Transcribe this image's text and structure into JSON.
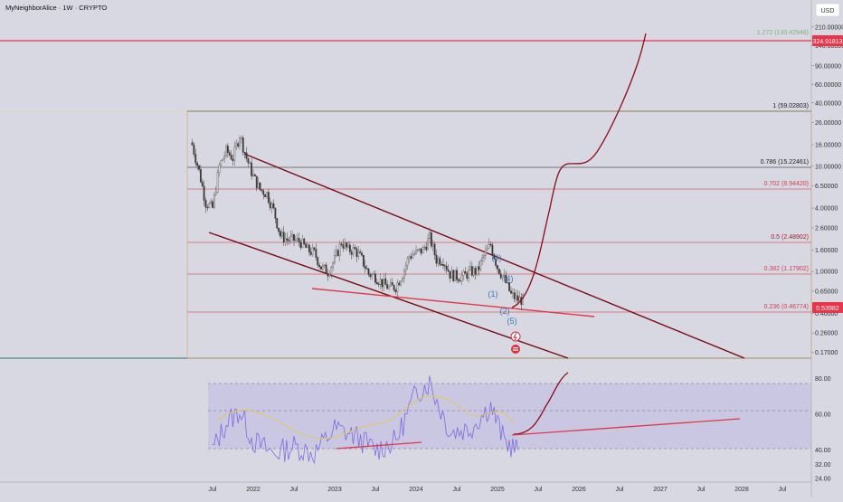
{
  "header": {
    "title": "MyNeighborAlice · 1W · CRYPTO",
    "currency": "USD"
  },
  "colors": {
    "background": "#d8d8e2",
    "rsi_band": "#c9c7e2",
    "channel": "#7a0a14",
    "support": "#e0384a",
    "projection": "#8b0d17",
    "candle_up": "#5f5a55",
    "candle_down": "#3d3733",
    "rsi_line": "#7b6be0",
    "rsi_ma": "#e6c84c",
    "fib_green": "#8fbf8f",
    "fib_red": "#e05060",
    "fib_gray": "#6a6a6a",
    "price_badge": "#e8354a",
    "elliott": "#3c78b4"
  },
  "price_axis": {
    "ticks": [
      "210.00000",
      "140.00000",
      "90.00000",
      "60.00000",
      "40.00000",
      "26.00000",
      "16.00000",
      "10.00000",
      "6.50000",
      "4.00000",
      "2.60000",
      "1.60000",
      "1.00000",
      "0.65000",
      "0.40000",
      "0.26000",
      "0.17000"
    ],
    "badge_top": "324.91813",
    "badge_current": "0.53982"
  },
  "rsi_axis": {
    "ticks": [
      "80.00",
      "60.00",
      "40.00",
      "32.00",
      "24.00"
    ]
  },
  "time_axis": {
    "labels": [
      "Jul",
      "2022",
      "Jul",
      "2023",
      "Jul",
      "2024",
      "Jul",
      "2025",
      "Jul",
      "2026",
      "Jul",
      "2027",
      "Jul",
      "2028",
      "Jul"
    ]
  },
  "fib_levels": [
    {
      "label": "1.272 (130.42948)",
      "color": "green"
    },
    {
      "label": "1 (59.02803)",
      "color": "gray"
    },
    {
      "label": "0.786 (15.22461)",
      "color": "gray"
    },
    {
      "label": "0.702 (8.94420)",
      "color": "red"
    },
    {
      "label": "0.5 (2.48902)",
      "color": "red"
    },
    {
      "label": "0.382 (1.17902)",
      "color": "red"
    },
    {
      "label": "0.236 (0.46774)",
      "color": "red"
    }
  ],
  "elliott_waves": [
    "(1)",
    "(2)",
    "(3)",
    "(4)",
    "(5)"
  ],
  "chart_data": [
    {
      "type": "candlestick",
      "title": "MyNeighborAlice · 1W · CRYPTO",
      "y_scale": "log",
      "ylim": [
        0.15,
        380
      ],
      "x_range": [
        "2021-04",
        "2028-09"
      ],
      "close_approx": [
        [
          "2021-04",
          16.0
        ],
        [
          "2021-05",
          9.0
        ],
        [
          "2021-06",
          4.5
        ],
        [
          "2021-07",
          4.0
        ],
        [
          "2021-08",
          10.0
        ],
        [
          "2021-09",
          14.0
        ],
        [
          "2021-10",
          12.0
        ],
        [
          "2021-11",
          20.0
        ],
        [
          "2021-12",
          12.0
        ],
        [
          "2022-01",
          8.0
        ],
        [
          "2022-02",
          6.0
        ],
        [
          "2022-03",
          5.5
        ],
        [
          "2022-04",
          3.8
        ],
        [
          "2022-05",
          2.2
        ],
        [
          "2022-06",
          2.0
        ],
        [
          "2022-07",
          2.0
        ],
        [
          "2022-08",
          1.9
        ],
        [
          "2022-09",
          1.6
        ],
        [
          "2022-10",
          1.5
        ],
        [
          "2022-11",
          1.1
        ],
        [
          "2022-12",
          1.0
        ],
        [
          "2023-01",
          1.3
        ],
        [
          "2023-02",
          1.9
        ],
        [
          "2023-03",
          1.6
        ],
        [
          "2023-04",
          1.6
        ],
        [
          "2023-05",
          1.3
        ],
        [
          "2023-06",
          0.95
        ],
        [
          "2023-07",
          0.9
        ],
        [
          "2023-08",
          0.78
        ],
        [
          "2023-09",
          0.7
        ],
        [
          "2023-10",
          0.72
        ],
        [
          "2023-11",
          0.95
        ],
        [
          "2023-12",
          1.4
        ],
        [
          "2024-01",
          1.5
        ],
        [
          "2024-02",
          1.6
        ],
        [
          "2024-03",
          2.1
        ],
        [
          "2024-04",
          1.3
        ],
        [
          "2024-05",
          1.3
        ],
        [
          "2024-06",
          0.95
        ],
        [
          "2024-07",
          0.9
        ],
        [
          "2024-08",
          0.9
        ],
        [
          "2024-09",
          1.0
        ],
        [
          "2024-10",
          1.0
        ],
        [
          "2024-11",
          1.4
        ],
        [
          "2024-12",
          1.8
        ],
        [
          "2025-01",
          1.1
        ],
        [
          "2025-02",
          0.85
        ],
        [
          "2025-03",
          0.6
        ],
        [
          "2025-04",
          0.54
        ]
      ],
      "projection_path_approx": [
        [
          "2025-04",
          0.5
        ],
        [
          "2025-07",
          1.2
        ],
        [
          "2025-10",
          8.0
        ],
        [
          "2026-01",
          16.0
        ],
        [
          "2026-04",
          17.0
        ],
        [
          "2026-07",
          30.0
        ],
        [
          "2026-10",
          80.0
        ],
        [
          "2027-01",
          300.0
        ]
      ]
    },
    {
      "type": "line",
      "title": "",
      "ylim": [
        22,
        90
      ],
      "rsi_approx": [
        [
          "2021-07",
          40
        ],
        [
          "2021-09",
          55
        ],
        [
          "2021-11",
          62
        ],
        [
          "2022-01",
          45
        ],
        [
          "2022-04",
          38
        ],
        [
          "2022-07",
          42
        ],
        [
          "2022-10",
          38
        ],
        [
          "2023-01",
          52
        ],
        [
          "2023-04",
          48
        ],
        [
          "2023-07",
          40
        ],
        [
          "2023-10",
          45
        ],
        [
          "2024-01",
          72
        ],
        [
          "2024-03",
          78
        ],
        [
          "2024-06",
          50
        ],
        [
          "2024-09",
          52
        ],
        [
          "2024-12",
          65
        ],
        [
          "2025-02",
          45
        ],
        [
          "2025-04",
          40
        ]
      ],
      "rsi_projection_approx": [
        [
          "2025-04",
          38
        ],
        [
          "2025-07",
          48
        ],
        [
          "2025-10",
          62
        ],
        [
          "2026-01",
          82
        ]
      ]
    }
  ]
}
